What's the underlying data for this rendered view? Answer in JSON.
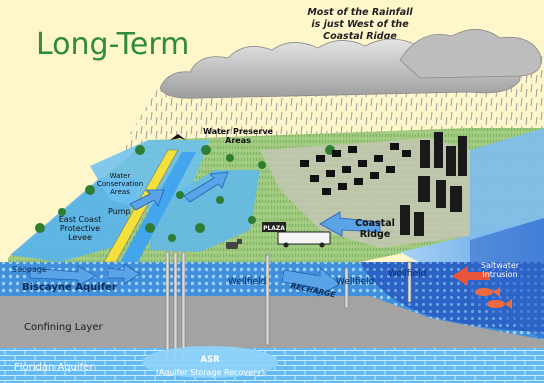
{
  "title": "Long-Term",
  "rain_note": [
    "Most of the Rainfall",
    "is just West of the",
    "Coastal Ridge"
  ],
  "labels": {
    "water_preserve_areas": [
      "Water Preserve",
      "Areas"
    ],
    "water_conservation_areas": [
      "Water",
      "Conservation",
      "Areas"
    ],
    "pump": "Pump",
    "east_coast_protective_levee": [
      "East Coast",
      "Protective",
      "Levee"
    ],
    "plaza": "PLAZA",
    "coastal_ridge": [
      "Coastal",
      "Ridge"
    ],
    "seepage": "Seepage",
    "biscayne_aquifer": "Biscayne Aquifer",
    "wellfield_1": "Wellfield",
    "wellfield_2": "Wellfield",
    "wellfield_3": "Wellfield",
    "recharge": "RECHARGE",
    "saltwater_intrusion": [
      "Saltwater",
      "Intrusion"
    ],
    "confining_layer": "Confining Layer",
    "floridan_aquifer": "Floridan Aquifer",
    "asr": "ASR",
    "asr_full": "(Aquifer Storage Recovery)"
  },
  "colors": {
    "background": "#fff6cc",
    "title": "#2e8b3e",
    "aquifer": "#3a8fe0",
    "ocean": "#2f6fd1",
    "confining": "#9a9a9a",
    "floridan": "#5fb6f0",
    "land_green": "#9ec87c",
    "canal": "#43a6ec"
  }
}
